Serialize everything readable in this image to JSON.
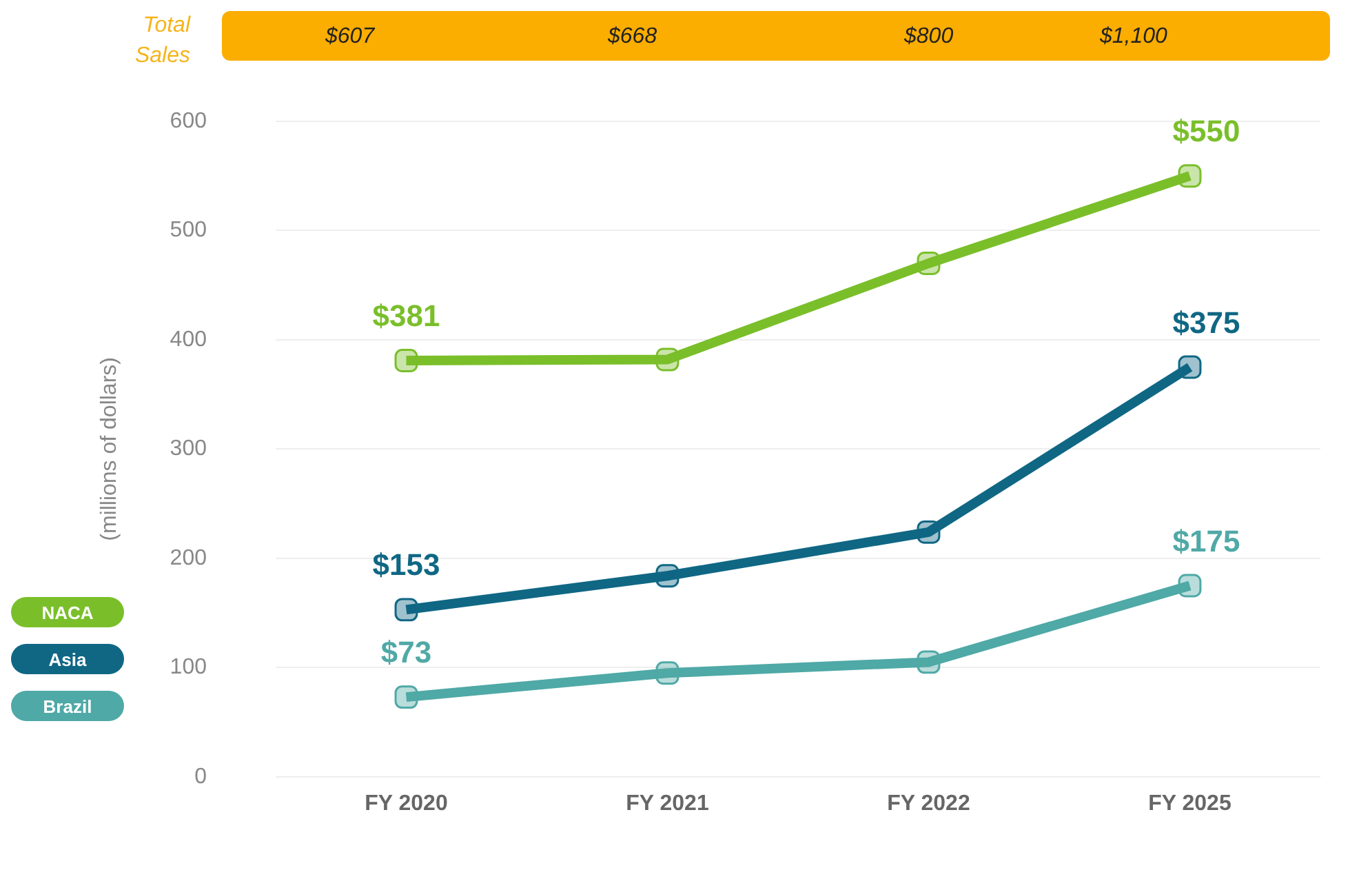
{
  "chart_data": {
    "type": "line",
    "ylabel": "(millions of dollars)",
    "annotations": [
      "Total Sales",
      "$607",
      "$668",
      "$800",
      "$1,100"
    ],
    "categories": [
      "FY 2020",
      "FY 2021",
      "FY 2022",
      "FY 2025"
    ],
    "series": [
      {
        "name": "NACA",
        "color": "#7abf2a",
        "values": [
          381,
          382,
          470,
          550
        ],
        "value_labels": [
          "$381",
          null,
          null,
          "$550"
        ]
      },
      {
        "name": "Asia",
        "color": "#0f6784",
        "values": [
          153,
          184,
          224,
          375
        ],
        "value_labels": [
          "$153",
          null,
          null,
          "$375"
        ]
      },
      {
        "name": "Brazil",
        "color": "#4fa9a6",
        "values": [
          73,
          95,
          105,
          175
        ],
        "value_labels": [
          "$73",
          null,
          null,
          "$175"
        ]
      }
    ],
    "ylim": [
      0,
      600
    ],
    "yticks": [
      0,
      100,
      200,
      300,
      400,
      500,
      600
    ],
    "grid": "y",
    "legend": "bottom left",
    "marker": "square",
    "line_style": "solid"
  }
}
